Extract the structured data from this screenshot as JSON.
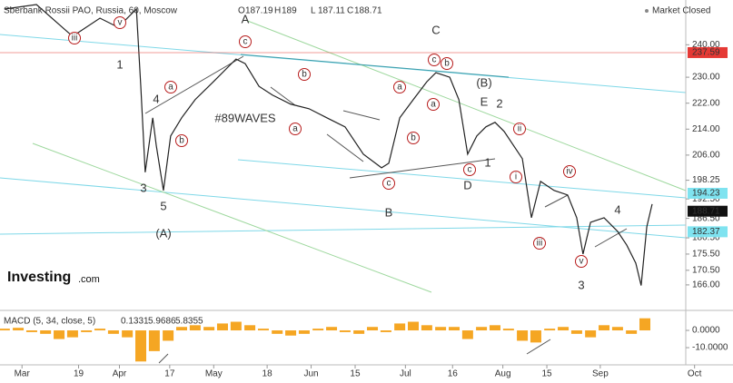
{
  "chart_data": [
    {
      "type": "line",
      "title": "Sberbank Rossii PAO, Russia, 60, Moscow",
      "ohlc": [
        {
          "label": "O",
          "value": 187.19
        },
        {
          "label": "H",
          "value": 189.0
        },
        {
          "label": "L",
          "value": 187.11
        },
        {
          "label": "C",
          "value": 188.71
        }
      ],
      "status": "Market Closed",
      "logo": "Investing",
      "logo_suffix": ".com",
      "xlim": [
        53,
        271.2
      ],
      "xticks": [
        {
          "value": 60,
          "label": "Mar"
        },
        {
          "value": 78,
          "label": "19"
        },
        {
          "value": 91,
          "label": "Apr"
        },
        {
          "value": 107,
          "label": "17"
        },
        {
          "value": 121,
          "label": "May"
        },
        {
          "value": 138,
          "label": "18"
        },
        {
          "value": 152,
          "label": "Jun"
        },
        {
          "value": 166,
          "label": "15"
        },
        {
          "value": 182,
          "label": "Jul"
        },
        {
          "value": 197,
          "label": "16"
        },
        {
          "value": 213,
          "label": "Aug"
        },
        {
          "value": 227,
          "label": "15"
        },
        {
          "value": 244,
          "label": "Sep"
        },
        {
          "value": 274,
          "label": "Oct"
        }
      ],
      "ylim": [
        158.7,
        253.8
      ],
      "yticks": [
        {
          "value": 166,
          "label": "166.00"
        },
        {
          "value": 170.5,
          "label": "170.50"
        },
        {
          "value": 175.5,
          "label": "175.50"
        },
        {
          "value": 180.5,
          "label": "180.50"
        },
        {
          "value": 186.5,
          "label": "186.50"
        },
        {
          "value": 192.5,
          "label": "192.50"
        },
        {
          "value": 198.25,
          "label": "198.25"
        },
        {
          "value": 206,
          "label": "206.00"
        },
        {
          "value": 214,
          "label": "214.00"
        },
        {
          "value": 222,
          "label": "222.00"
        },
        {
          "value": 230,
          "label": "230.00"
        },
        {
          "value": 240,
          "label": "240.00"
        }
      ],
      "series": [
        {
          "color": "#222222",
          "x": [
            54.4,
            64.6,
            76.1,
            84.8,
            90.6,
            96.4,
            97.8,
            99.2,
            101.6,
            102.7,
            105,
            107.3,
            110.8,
            115.1,
            120.9,
            128.1,
            131,
            135.4,
            139.7,
            145.5,
            151.3,
            157,
            162.8,
            168.6,
            174.4,
            176.7,
            180.2,
            184.5,
            188.8,
            191.7,
            196.1,
            199,
            201.8,
            204.7,
            207.6,
            210.5,
            213.4,
            219.2,
            222.1,
            225,
            229.3,
            233.6,
            236.5,
            238.5,
            240.9,
            245.2,
            249.5,
            252.4,
            255.3,
            257,
            258.8,
            260.5
          ],
          "values": [
            251.0,
            252.4,
            242.6,
            248.2,
            245.4,
            251.0,
            227.2,
            200.7,
            217.5,
            209.1,
            195.1,
            211.9,
            217.5,
            223.1,
            228.6,
            235.6,
            234.2,
            227.2,
            224.5,
            221.7,
            220.3,
            217.5,
            214.7,
            206.3,
            202.1,
            203.5,
            217.5,
            223.1,
            228.6,
            231.4,
            230.0,
            223.1,
            206.3,
            211.9,
            214.7,
            216.1,
            213.3,
            204.9,
            186.7,
            197.9,
            195.1,
            193.7,
            186.7,
            175.5,
            185.3,
            186.7,
            182.5,
            178.3,
            172.7,
            165.8,
            183.9,
            190.9
          ]
        }
      ],
      "price_badges": [
        {
          "value": 237.59,
          "color": "#e53935",
          "text_color": "#ffffff"
        },
        {
          "value": 194.23,
          "color": "#7fe3f0",
          "text_color": "#000000"
        },
        {
          "value": 188.71,
          "color": "#111111",
          "text_color": "#ffffff"
        },
        {
          "value": 182.37,
          "color": "#7fe3f0",
          "text_color": "#000000"
        }
      ],
      "annotations": [
        {
          "text": "iii",
          "color": "#b71c1c",
          "circled": true
        },
        {
          "text": "v",
          "color": "#b71c1c",
          "circled": true
        },
        {
          "text": "1",
          "color": "#1a237e"
        },
        {
          "text": "4",
          "color": "#1a237e"
        },
        {
          "text": "3",
          "color": "#1a237e"
        },
        {
          "text": "5",
          "color": "#1a237e"
        },
        {
          "text": "(A)",
          "color": "#2e9a2e"
        },
        {
          "text": "a",
          "color": "#b71c1c",
          "circled": true
        },
        {
          "text": "b",
          "color": "#b71c1c",
          "circled": true
        },
        {
          "text": "A",
          "color": "#1a237e"
        },
        {
          "text": "c",
          "color": "#b71c1c",
          "circled": true
        },
        {
          "text": "#89WAVES",
          "color": "#f0a030"
        },
        {
          "text": "b",
          "color": "#b71c1c",
          "circled": true
        },
        {
          "text": "a",
          "color": "#b71c1c",
          "circled": true
        },
        {
          "text": "c",
          "color": "#b71c1c",
          "circled": true
        },
        {
          "text": "B",
          "color": "#1a237e"
        },
        {
          "text": "a",
          "color": "#b71c1c",
          "circled": true
        },
        {
          "text": "b",
          "color": "#b71c1c",
          "circled": true
        },
        {
          "text": "C",
          "color": "#1a237e"
        },
        {
          "text": "c",
          "color": "#b71c1c",
          "circled": true
        },
        {
          "text": "b",
          "color": "#b71c1c",
          "circled": true
        },
        {
          "text": "a",
          "color": "#b71c1c",
          "circled": true
        },
        {
          "text": "(B)",
          "color": "#2e9a2e"
        },
        {
          "text": "E",
          "color": "#1a237e"
        },
        {
          "text": "2",
          "color": "#1a237e"
        },
        {
          "text": "c",
          "color": "#b71c1c",
          "circled": true
        },
        {
          "text": "1",
          "color": "#1a237e"
        },
        {
          "text": "D",
          "color": "#1a237e"
        },
        {
          "text": "ii",
          "color": "#b71c1c",
          "circled": true
        },
        {
          "text": "i",
          "color": "#b71c1c",
          "circled": true
        },
        {
          "text": "iv",
          "color": "#b71c1c",
          "circled": true
        },
        {
          "text": "iii",
          "color": "#b71c1c",
          "circled": true
        },
        {
          "text": "v",
          "color": "#b71c1c",
          "circled": true
        },
        {
          "text": "4",
          "color": "#1a237e"
        },
        {
          "text": "3",
          "color": "#1a237e"
        }
      ]
    },
    {
      "type": "bar",
      "title": "MACD (5, 34, close, 5)",
      "readouts": [
        {
          "value": 0.1331,
          "color": "#e53935"
        },
        {
          "value": 5.9686,
          "color": "#f0a030"
        },
        {
          "value": 5.8355,
          "color": "#f0a030"
        }
      ],
      "color": "#f5a623",
      "ylim": [
        -18.9,
        10
      ],
      "yticks": [
        {
          "value": 0,
          "label": "0.0000"
        },
        {
          "value": -10,
          "label": "-10.0000"
        }
      ],
      "x": [
        54.4,
        58.8,
        63.1,
        67.5,
        71.8,
        76.1,
        80.5,
        84.8,
        89.1,
        93.5,
        97.8,
        102.1,
        106.5,
        110.8,
        115.1,
        119.5,
        123.8,
        128.1,
        132.5,
        136.8,
        141.2,
        145.5,
        149.8,
        154.2,
        158.5,
        162.8,
        167.2,
        171.5,
        175.8,
        180.2,
        184.5,
        188.8,
        193.2,
        197.5,
        201.8,
        206.2,
        210.5,
        214.8,
        219.2,
        223.5,
        227.9,
        232.2,
        236.5,
        240.9,
        245.2,
        249.5,
        253.9,
        258.2
      ],
      "values": [
        1,
        1.5,
        -1,
        -2,
        -5,
        -4,
        -1,
        1,
        -2,
        -4,
        -18,
        -12,
        -6,
        2,
        3,
        2,
        4,
        5,
        3,
        1,
        -2,
        -3,
        -2,
        1,
        2,
        -1,
        -2,
        2,
        -1,
        4,
        5,
        3,
        2,
        2,
        -5,
        2,
        3,
        1,
        -6,
        -7,
        1,
        2,
        -2,
        -4,
        3,
        2,
        -2,
        7
      ]
    }
  ]
}
